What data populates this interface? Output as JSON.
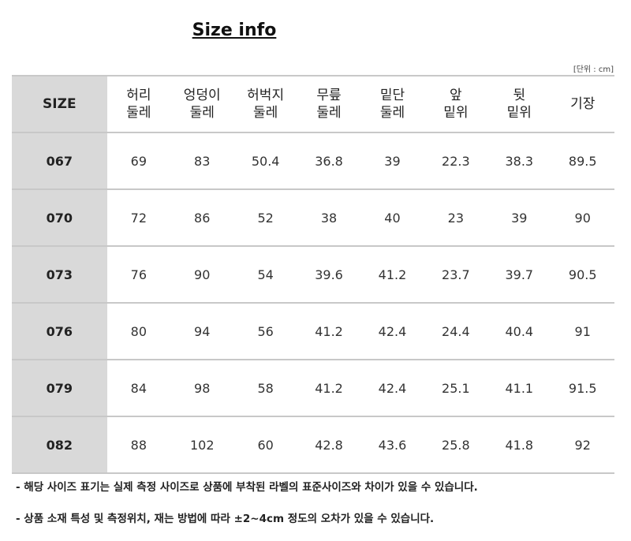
{
  "title": "Size info",
  "unit": "[단위 : cm]",
  "headers": [
    "SIZE",
    "허리\n둘레",
    "엉덩이\n둘레",
    "허벅지\n둘레",
    "무릎\n둘레",
    "밑단\n둘레",
    "앞\n밑위",
    "뒷\n밑위",
    "기장"
  ],
  "rows": [
    [
      "067",
      "69",
      "83",
      "50.4",
      "36.8",
      "39",
      "22.3",
      "38.3",
      "89.5"
    ],
    [
      "070",
      "72",
      "86",
      "52",
      "38",
      "40",
      "23",
      "39",
      "90"
    ],
    [
      "073",
      "76",
      "90",
      "54",
      "39.6",
      "41.2",
      "23.7",
      "39.7",
      "90.5"
    ],
    [
      "076",
      "80",
      "94",
      "56",
      "41.2",
      "42.4",
      "24.4",
      "40.4",
      "91"
    ],
    [
      "079",
      "84",
      "98",
      "58",
      "41.2",
      "42.4",
      "25.1",
      "41.1",
      "91.5"
    ],
    [
      "082",
      "88",
      "102",
      "60",
      "42.8",
      "43.6",
      "25.8",
      "41.8",
      "92"
    ]
  ],
  "notes": [
    "- 해당 사이즈 표기는 실제 측정 사이즈로 상품에 부착된 라벨의 표준사이즈와 차이가 있을 수 있습니다.",
    "- 상품 소재 특성 및 측정위치, 재는 방법에 따라 ±2~4cm 정도의 오차가 있을 수 있습니다."
  ],
  "colors": {
    "size_column_bg": "#d9d9d9",
    "border": "#c8c8c8"
  }
}
